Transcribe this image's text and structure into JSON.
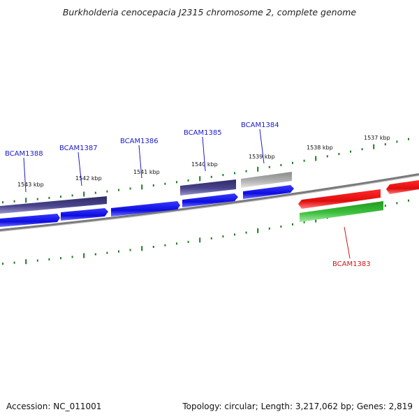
{
  "title": "Burkholderia cenocepacia J2315 chromosome 2, complete genome",
  "footer": {
    "accession": "Accession: NC_011001",
    "summary": "Topology: circular; Length: 3,217,062 bp; Genes: 2,819"
  },
  "ruler": {
    "unit": "kbp",
    "labels": [
      "1543 kbp",
      "1542 kbp",
      "1541 kbp",
      "1540 kbp",
      "1539 kbp",
      "1538 kbp",
      "1537 kbp"
    ],
    "tick_color": "#1e7a1e"
  },
  "gene_labels": [
    {
      "name": "BCAM1388",
      "color": "#1a1acc"
    },
    {
      "name": "BCAM1387",
      "color": "#1a1acc"
    },
    {
      "name": "BCAM1386",
      "color": "#1a1acc"
    },
    {
      "name": "BCAM1385",
      "color": "#1a1acc"
    },
    {
      "name": "BCAM1384",
      "color": "#1a1acc"
    },
    {
      "name": "BCAM1383",
      "color": "#cc1a1a"
    }
  ],
  "colors": {
    "forward_gene": "#1010ee",
    "reverse_gene": "#ee1010",
    "rna_forward": "#4a448c",
    "rna_reverse": "#3cbf3c",
    "pseudo": "#b0b0b0",
    "backbone": "#7a7a7a"
  }
}
